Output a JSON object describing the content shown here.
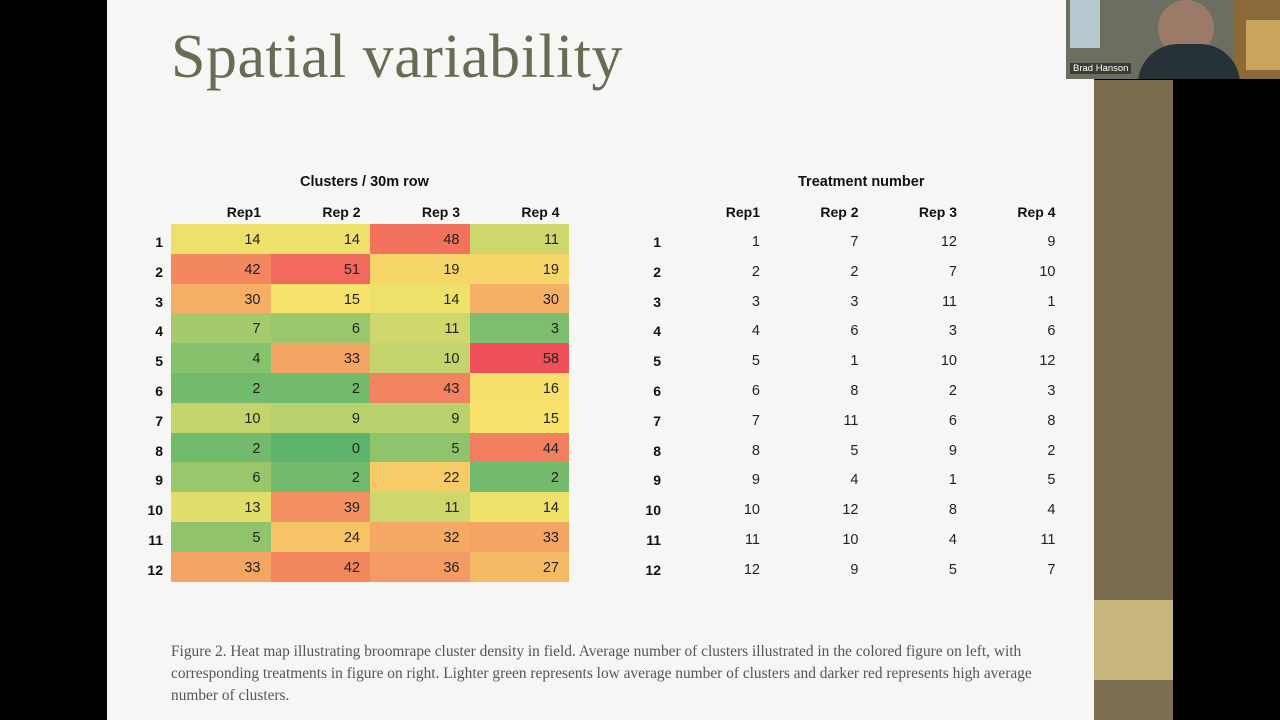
{
  "slide": {
    "title": "Spatial variability",
    "caption": "Figure 2. Heat map illustrating broomrape cluster density in field. Average number of clusters illustrated in the colored figure on left, with corresponding treatments in figure on right. Lighter green represents low average number of clusters and darker red represents high average number of clusters."
  },
  "heatmap": {
    "title": "Clusters / 30m row",
    "columns": [
      "Rep1",
      "Rep 2",
      "Rep 3",
      "Rep 4"
    ],
    "row_labels": [
      "1",
      "2",
      "3",
      "4",
      "5",
      "6",
      "7",
      "8",
      "9",
      "10",
      "11",
      "12"
    ],
    "values": [
      [
        14,
        14,
        48,
        11
      ],
      [
        42,
        51,
        19,
        19
      ],
      [
        30,
        15,
        14,
        30
      ],
      [
        7,
        6,
        11,
        3
      ],
      [
        4,
        33,
        10,
        58
      ],
      [
        2,
        2,
        43,
        16
      ],
      [
        10,
        9,
        9,
        15
      ],
      [
        2,
        0,
        5,
        44
      ],
      [
        6,
        2,
        22,
        2
      ],
      [
        13,
        39,
        11,
        14
      ],
      [
        5,
        24,
        32,
        33
      ],
      [
        33,
        42,
        36,
        27
      ]
    ]
  },
  "treatments": {
    "title": "Treatment number",
    "columns": [
      "Rep1",
      "Rep 2",
      "Rep 3",
      "Rep 4"
    ],
    "row_labels": [
      "1",
      "2",
      "3",
      "4",
      "5",
      "6",
      "7",
      "8",
      "9",
      "10",
      "11",
      "12"
    ],
    "values": [
      [
        1,
        7,
        12,
        9
      ],
      [
        2,
        2,
        7,
        10
      ],
      [
        3,
        3,
        11,
        1
      ],
      [
        4,
        6,
        3,
        6
      ],
      [
        5,
        1,
        10,
        12
      ],
      [
        6,
        8,
        2,
        3
      ],
      [
        7,
        11,
        6,
        8
      ],
      [
        8,
        5,
        9,
        2
      ],
      [
        9,
        4,
        1,
        5
      ],
      [
        10,
        12,
        8,
        4
      ],
      [
        11,
        10,
        4,
        11
      ],
      [
        12,
        9,
        5,
        7
      ]
    ]
  },
  "participant": {
    "name": "Brad Hanson"
  },
  "colors": {
    "title": "#6b6a52",
    "side_panel": "#7a6c4e",
    "heat_low": "#5db56d",
    "heat_mid": "#f7e36b",
    "heat_high": "#f0505a"
  }
}
